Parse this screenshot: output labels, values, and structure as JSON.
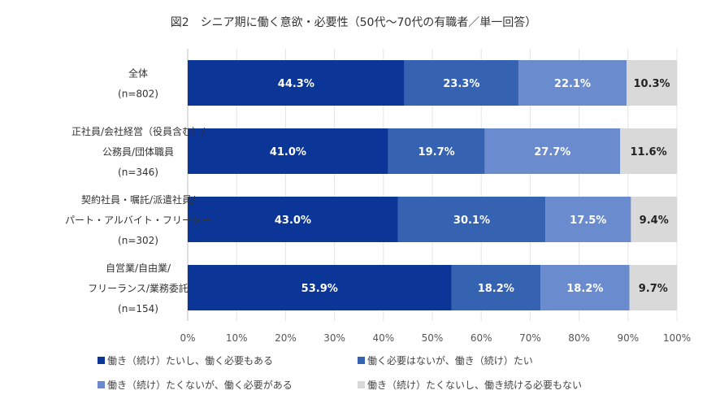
{
  "chart_data": {
    "type": "bar",
    "orientation": "horizontal",
    "stacked": true,
    "title": "図2　シニア期に働く意欲・必要性（50代～70代の有職者／単一回答）",
    "categories": [
      [
        "全体",
        "(n=802)"
      ],
      [
        "正社員/会社経営（役員含む）/",
        "公務員/団体職員",
        "(n=346)"
      ],
      [
        "契約社員・嘱託/派遣社員/",
        "パート・アルバイト・フリーター",
        "(n=302)"
      ],
      [
        "自営業/自由業/",
        "フリーランス/業務委託",
        "(n=154)"
      ]
    ],
    "series": [
      {
        "name": "働き（続け）たいし、働く必要もある",
        "color": "#0b3597",
        "values": [
          44.3,
          41.0,
          43.0,
          53.9
        ]
      },
      {
        "name": "働く必要はないが、働き（続け）たい",
        "color": "#3562b1",
        "values": [
          23.3,
          19.7,
          30.1,
          18.2
        ]
      },
      {
        "name": "働き（続け）たくないが、働く必要がある",
        "color": "#6a8bcd",
        "values": [
          22.1,
          27.7,
          17.5,
          18.2
        ]
      },
      {
        "name": "働き（続け）たくないし、働き続ける必要もない",
        "color": "#d9d9d9",
        "values": [
          10.3,
          11.6,
          9.4,
          9.7
        ]
      }
    ],
    "xlim": [
      0,
      100
    ],
    "xticks": [
      "0%",
      "10%",
      "20%",
      "30%",
      "40%",
      "50%",
      "60%",
      "70%",
      "80%",
      "90%",
      "100%"
    ],
    "grid": true,
    "legend_position": "bottom"
  }
}
